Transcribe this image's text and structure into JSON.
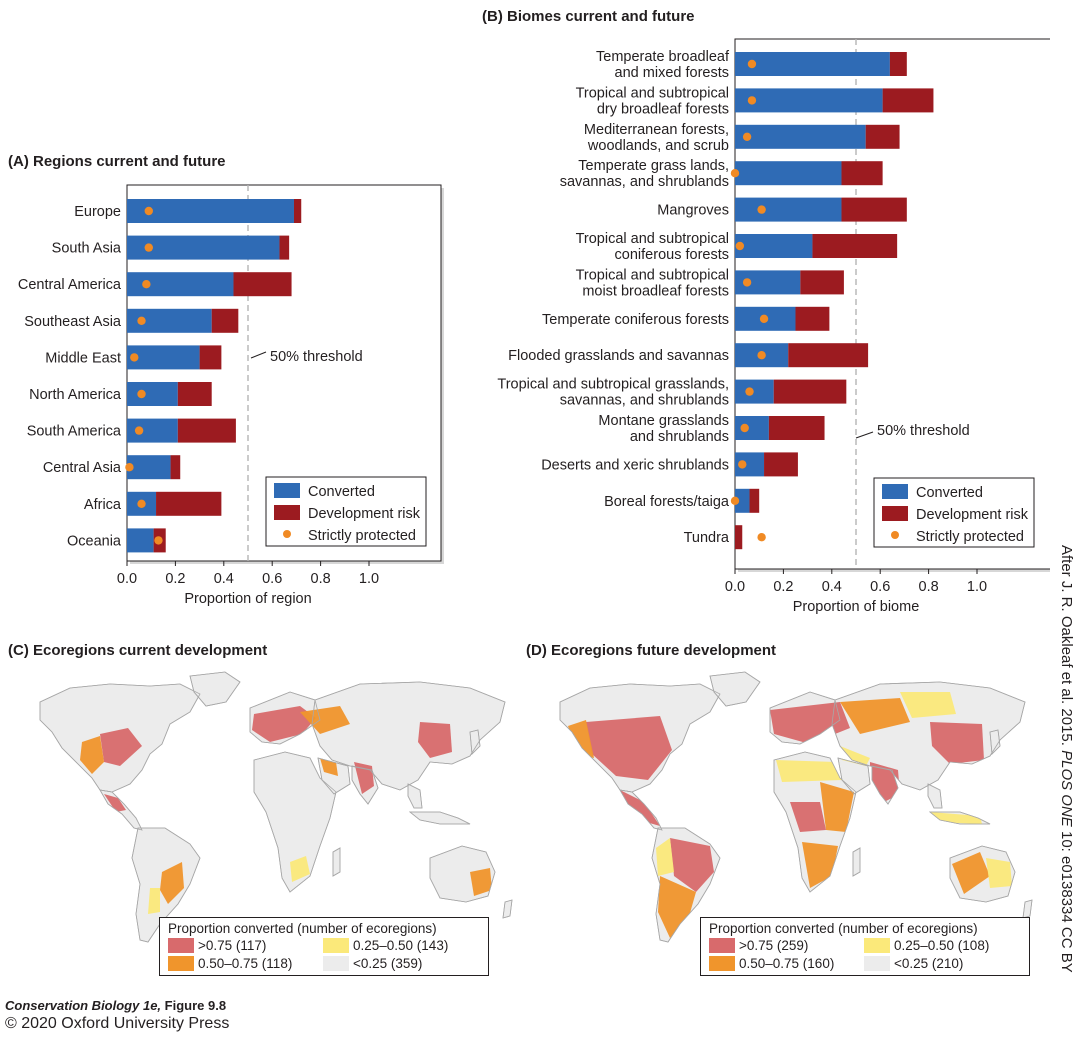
{
  "chart_data": [
    {
      "id": "A",
      "type": "bar",
      "orientation": "horizontal",
      "stacked": true,
      "title": "(A)  Regions current and future",
      "xlabel": "Proportion of region",
      "xlim": [
        0,
        1.0
      ],
      "xticks": [
        "0.0",
        "0.2",
        "0.4",
        "0.6",
        "0.8",
        "1.0"
      ],
      "categories": [
        [
          "Europe"
        ],
        [
          "South Asia"
        ],
        [
          "Central America"
        ],
        [
          "Southeast Asia"
        ],
        [
          "Middle East"
        ],
        [
          "North America"
        ],
        [
          "South America"
        ],
        [
          "Central Asia"
        ],
        [
          "Africa"
        ],
        [
          "Oceania"
        ]
      ],
      "series": [
        {
          "name": "Converted",
          "values": [
            0.69,
            0.63,
            0.44,
            0.35,
            0.3,
            0.21,
            0.21,
            0.18,
            0.12,
            0.11
          ]
        },
        {
          "name": "Development risk",
          "values": [
            0.03,
            0.04,
            0.24,
            0.11,
            0.09,
            0.14,
            0.24,
            0.04,
            0.27,
            0.05
          ]
        },
        {
          "name": "Strictly protected",
          "values": [
            0.09,
            0.09,
            0.08,
            0.06,
            0.03,
            0.06,
            0.05,
            0.01,
            0.06,
            0.13
          ]
        }
      ],
      "threshold": {
        "value": 0.5,
        "label": "50% threshold"
      },
      "legend": "bottom-right"
    },
    {
      "id": "B",
      "type": "bar",
      "orientation": "horizontal",
      "stacked": true,
      "title": "(B)  Biomes current and future",
      "xlabel": "Proportion of biome",
      "xlim": [
        0,
        1.0
      ],
      "xticks": [
        "0.0",
        "0.2",
        "0.4",
        "0.6",
        "0.8",
        "1.0"
      ],
      "categories": [
        [
          "Temperate broadleaf",
          "and mixed forests"
        ],
        [
          "Tropical and subtropical",
          "dry broadleaf forests"
        ],
        [
          "Mediterranean forests,",
          "woodlands, and scrub"
        ],
        [
          "Temperate grass lands,",
          "savannas, and shrublands"
        ],
        [
          "Mangroves"
        ],
        [
          "Tropical and subtropical",
          "coniferous forests"
        ],
        [
          "Tropical and subtropical",
          "moist broadleaf forests"
        ],
        [
          "Temperate coniferous forests"
        ],
        [
          "Flooded grasslands and savannas"
        ],
        [
          "Tropical and subtropical grasslands,",
          "savannas, and shrublands"
        ],
        [
          "Montane grasslands",
          "and shrublands"
        ],
        [
          "Deserts and xeric shrublands"
        ],
        [
          "Boreal forests/taiga"
        ],
        [
          "Tundra"
        ]
      ],
      "series": [
        {
          "name": "Converted",
          "values": [
            0.64,
            0.61,
            0.54,
            0.44,
            0.44,
            0.32,
            0.27,
            0.25,
            0.22,
            0.16,
            0.14,
            0.12,
            0.06,
            0.0
          ]
        },
        {
          "name": "Development risk",
          "values": [
            0.07,
            0.21,
            0.14,
            0.17,
            0.27,
            0.35,
            0.18,
            0.14,
            0.33,
            0.3,
            0.23,
            0.14,
            0.04,
            0.03
          ]
        },
        {
          "name": "Strictly protected",
          "values": [
            0.07,
            0.07,
            0.05,
            0.0,
            0.11,
            0.02,
            0.05,
            0.12,
            0.11,
            0.06,
            0.04,
            0.03,
            0.0,
            0.11
          ]
        }
      ],
      "threshold": {
        "value": 0.5,
        "label": "50% threshold"
      },
      "legend": "bottom-right"
    }
  ],
  "legend_labels": {
    "converted": "Converted",
    "risk": "Development risk",
    "protected": "Strictly protected"
  },
  "colors": {
    "converted": "#2f6bb5",
    "risk": "#9c1b20",
    "protected": "#f08a24",
    "axis": "#231f20",
    "threshold": "#b5b5b5",
    "map_high": "#d86a6c",
    "map_mid": "#f0952c",
    "map_low": "#fbe97a",
    "map_none": "#ececec",
    "land_border": "#a8a8a8"
  },
  "maps": {
    "C": {
      "title": "(C)  Ecoregions current development",
      "legend_title": "Proportion converted (number of ecoregions)",
      "items": [
        ">0.75 (117)",
        "0.25–0.50 (143)",
        "0.50–0.75 (118)",
        "<0.25 (359)"
      ]
    },
    "D": {
      "title": "(D)  Ecoregions future development",
      "legend_title": "Proportion converted (number of ecoregions)",
      "items": [
        ">0.75 (259)",
        "0.25–0.50 (108)",
        "0.50–0.75 (160)",
        "<0.25 (210)"
      ]
    }
  },
  "credits": {
    "rotated_pre": "After J. R. Oakleaf et al. 2015. ",
    "rotated_journal": "PLOS ONE",
    "rotated_post": " 10: e0138334 CC BY",
    "book": "Conservation Biology 1e,",
    "figure": " Figure 9.8",
    "copyright": "© 2020 Oxford University Press"
  }
}
